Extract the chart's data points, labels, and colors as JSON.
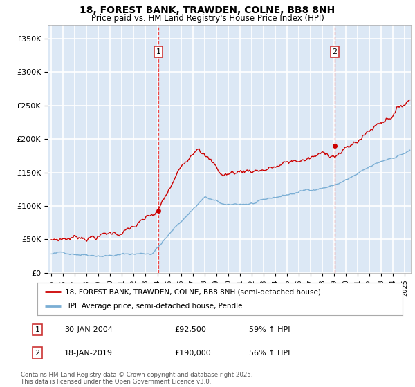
{
  "title": "18, FOREST BANK, TRAWDEN, COLNE, BB8 8NH",
  "subtitle": "Price paid vs. HM Land Registry's House Price Index (HPI)",
  "title_fontsize": 10,
  "subtitle_fontsize": 8.5,
  "ylabel_ticks": [
    "£0",
    "£50K",
    "£100K",
    "£150K",
    "£200K",
    "£250K",
    "£300K",
    "£350K"
  ],
  "ytick_values": [
    0,
    50000,
    100000,
    150000,
    200000,
    250000,
    300000,
    350000
  ],
  "ylim": [
    0,
    370000
  ],
  "xlim_start": 1994.7,
  "xlim_end": 2025.5,
  "bg_color": "#dce8f5",
  "grid_color": "#ffffff",
  "red_line_color": "#cc0000",
  "blue_line_color": "#7aaed4",
  "sale1_x": 2004.08,
  "sale1_y": 92500,
  "sale1_label": "1",
  "sale1_date": "30-JAN-2004",
  "sale1_price": "£92,500",
  "sale1_hpi": "59% ↑ HPI",
  "sale2_x": 2019.05,
  "sale2_y": 190000,
  "sale2_label": "2",
  "sale2_date": "18-JAN-2019",
  "sale2_price": "£190,000",
  "sale2_hpi": "56% ↑ HPI",
  "vline_color": "#ee4444",
  "legend_line1": "18, FOREST BANK, TRAWDEN, COLNE, BB8 8NH (semi-detached house)",
  "legend_line2": "HPI: Average price, semi-detached house, Pendle",
  "footer": "Contains HM Land Registry data © Crown copyright and database right 2025.\nThis data is licensed under the Open Government Licence v3.0.",
  "xticks": [
    1995,
    1996,
    1997,
    1998,
    1999,
    2000,
    2001,
    2002,
    2003,
    2004,
    2005,
    2006,
    2007,
    2008,
    2009,
    2010,
    2011,
    2012,
    2013,
    2014,
    2015,
    2016,
    2017,
    2018,
    2019,
    2020,
    2021,
    2022,
    2023,
    2024,
    2025
  ]
}
